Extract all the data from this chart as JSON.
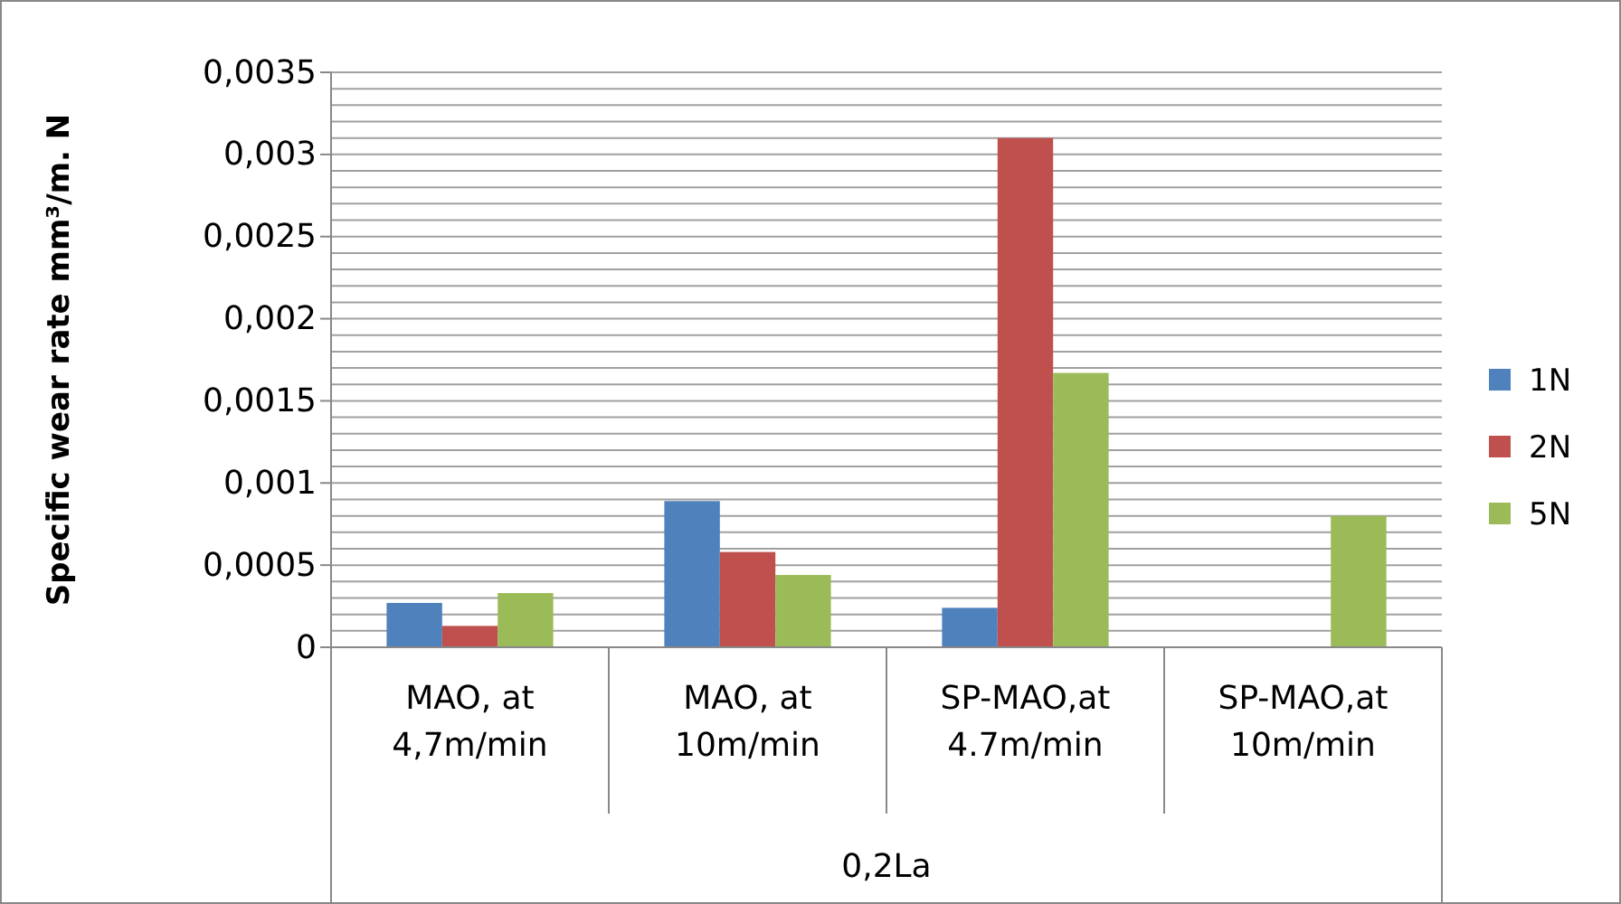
{
  "chart_data": {
    "type": "bar",
    "ylabel": "Specific wear rate mm³/m. N",
    "xlabel": "0,2La",
    "categories": [
      "MAO, at 4,7m/min",
      "MAO, at 10m/min",
      "SP-MAO,at 4.7m/min",
      "SP-MAO,at 10m/min"
    ],
    "series": [
      {
        "name": "1N",
        "color": "#4f81bd",
        "values": [
          0.00027,
          0.00089,
          0.00024,
          0
        ]
      },
      {
        "name": "2N",
        "color": "#c0504d",
        "values": [
          0.00013,
          0.00058,
          0.0031,
          0
        ]
      },
      {
        "name": "5N",
        "color": "#9bbb59",
        "values": [
          0.00033,
          0.00044,
          0.00167,
          0.0008
        ]
      }
    ],
    "ylim": [
      0,
      0.0035
    ],
    "yticks": [
      {
        "value": 0,
        "label": "0"
      },
      {
        "value": 0.0001,
        "label": null
      },
      {
        "value": 0.0002,
        "label": null
      },
      {
        "value": 0.0003,
        "label": null
      },
      {
        "value": 0.0004,
        "label": null
      },
      {
        "value": 0.0005,
        "label": "0,0005"
      },
      {
        "value": 0.0006,
        "label": null
      },
      {
        "value": 0.0007,
        "label": null
      },
      {
        "value": 0.0008,
        "label": null
      },
      {
        "value": 0.0009,
        "label": null
      },
      {
        "value": 0.001,
        "label": "0,001"
      },
      {
        "value": 0.0011,
        "label": null
      },
      {
        "value": 0.0012,
        "label": null
      },
      {
        "value": 0.0013,
        "label": null
      },
      {
        "value": 0.0014,
        "label": null
      },
      {
        "value": 0.0015,
        "label": "0,0015"
      },
      {
        "value": 0.0016,
        "label": null
      },
      {
        "value": 0.0017,
        "label": null
      },
      {
        "value": 0.0018,
        "label": null
      },
      {
        "value": 0.0019,
        "label": null
      },
      {
        "value": 0.002,
        "label": "0,002"
      },
      {
        "value": 0.0021,
        "label": null
      },
      {
        "value": 0.0022,
        "label": null
      },
      {
        "value": 0.0023,
        "label": null
      },
      {
        "value": 0.0024,
        "label": null
      },
      {
        "value": 0.0025,
        "label": "0,0025"
      },
      {
        "value": 0.0026,
        "label": null
      },
      {
        "value": 0.0027,
        "label": null
      },
      {
        "value": 0.0028,
        "label": null
      },
      {
        "value": 0.0029,
        "label": null
      },
      {
        "value": 0.003,
        "label": "0,003"
      },
      {
        "value": 0.0031,
        "label": null
      },
      {
        "value": 0.0032,
        "label": null
      },
      {
        "value": 0.0033,
        "label": null
      },
      {
        "value": 0.0034,
        "label": null
      },
      {
        "value": 0.0035,
        "label": "0,0035"
      }
    ],
    "grid": "y",
    "legend": "right"
  }
}
